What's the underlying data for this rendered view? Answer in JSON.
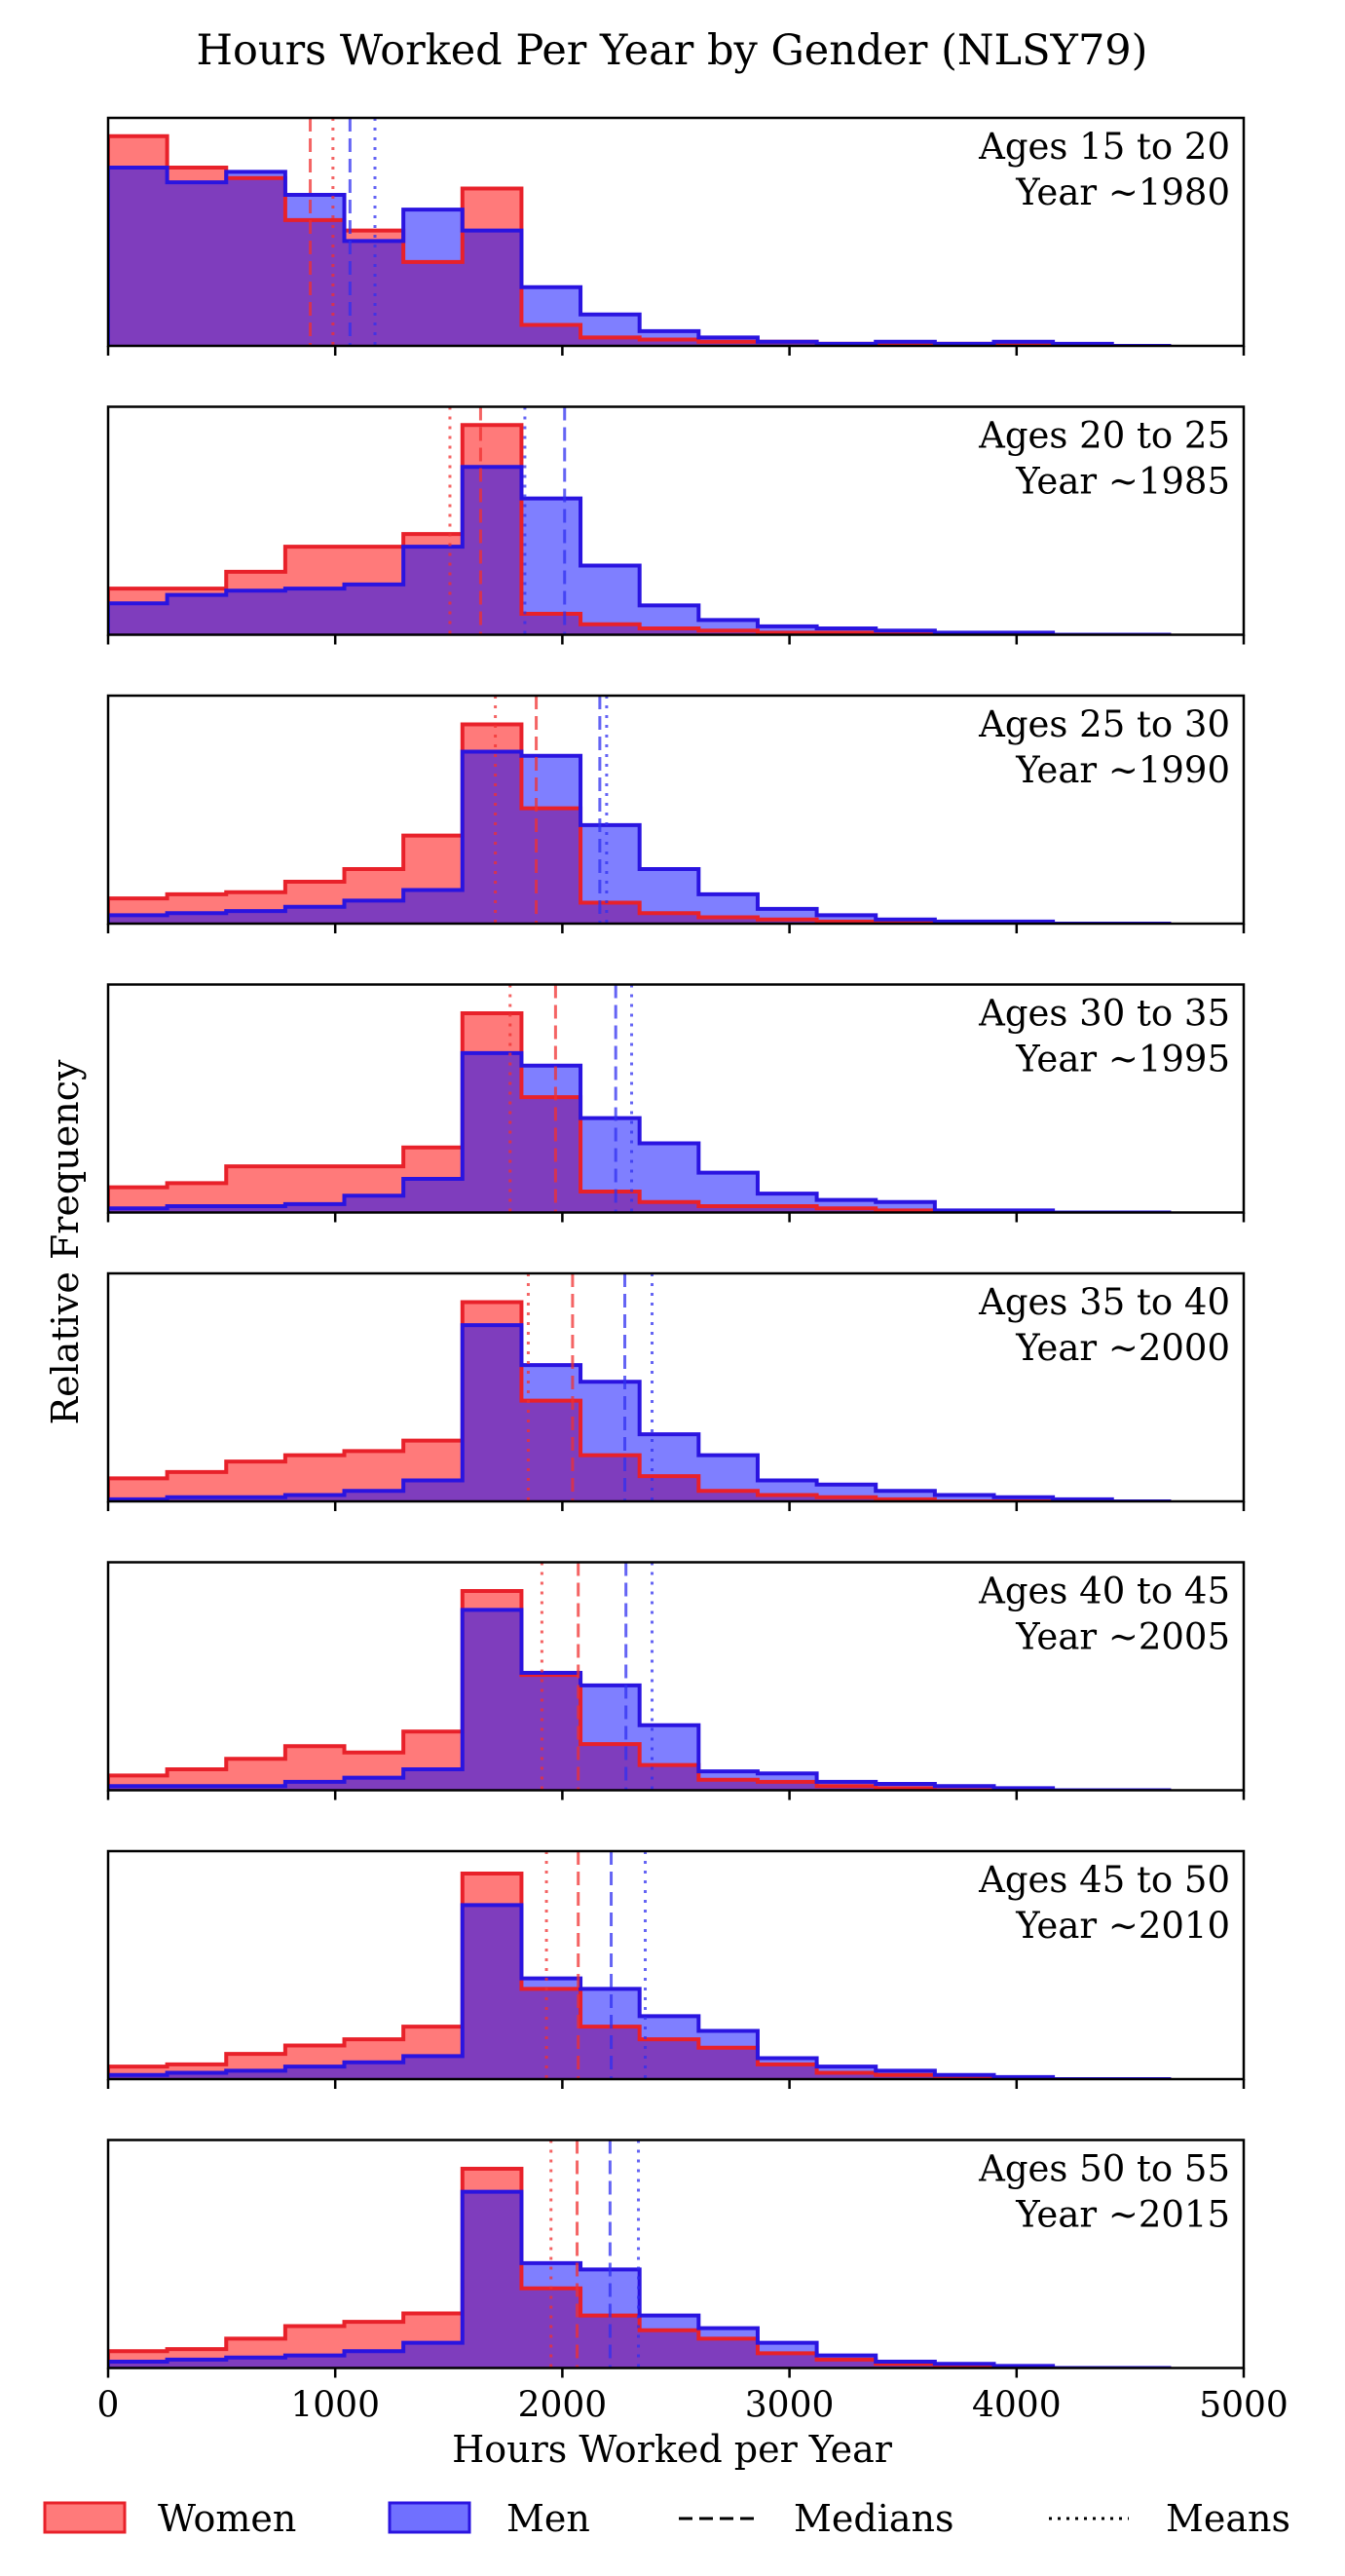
{
  "chart_data": {
    "type": "step-histogram",
    "title": "Hours Worked Per Year by Gender (NLSY79)",
    "xlabel": "Hours Worked per Year",
    "ylabel": "Relative Frequency",
    "xlim": [
      0,
      5000
    ],
    "xticks": [
      0,
      1000,
      2000,
      3000,
      4000,
      5000
    ],
    "bin_edges": [
      0,
      260,
      520,
      780,
      1040,
      1300,
      1560,
      1820,
      2080,
      2340,
      2600,
      2860,
      3120,
      3380,
      3640,
      3900,
      4160,
      4420,
      4680
    ],
    "grid": false,
    "legend_position": "bottom",
    "legend": [
      {
        "kind": "women",
        "label": "Women"
      },
      {
        "kind": "men",
        "label": "Men"
      },
      {
        "kind": "medians",
        "label": "Medians"
      },
      {
        "kind": "means",
        "label": "Means"
      }
    ],
    "colors": {
      "women_fill": "#ff7a7a",
      "women_edge": "#e8212a",
      "men_fill": "#7070ff",
      "men_edge": "#2a14e0",
      "overlap": "#7a40c0"
    },
    "panels": [
      {
        "ages": "Ages 15 to 20",
        "year": "Year ~1980",
        "women": [
          1.0,
          0.85,
          0.8,
          0.6,
          0.55,
          0.4,
          0.75,
          0.1,
          0.04,
          0.03,
          0.02,
          0.02,
          0.01,
          0.01,
          0.01,
          0.01,
          0.0,
          0.0
        ],
        "men": [
          0.85,
          0.78,
          0.83,
          0.72,
          0.5,
          0.65,
          0.55,
          0.28,
          0.15,
          0.07,
          0.04,
          0.02,
          0.01,
          0.02,
          0.01,
          0.02,
          0.01,
          0.0
        ],
        "women_median": 890,
        "women_mean": 990,
        "men_median": 1065,
        "men_mean": 1175
      },
      {
        "ages": "Ages 20 to 25",
        "year": "Year ~1985",
        "women": [
          0.22,
          0.22,
          0.3,
          0.42,
          0.42,
          0.48,
          1.0,
          0.1,
          0.05,
          0.03,
          0.02,
          0.01,
          0.01,
          0.01,
          0.0,
          0.0,
          0.0,
          0.0
        ],
        "men": [
          0.15,
          0.19,
          0.21,
          0.22,
          0.24,
          0.42,
          0.8,
          0.65,
          0.33,
          0.14,
          0.07,
          0.04,
          0.03,
          0.02,
          0.01,
          0.01,
          0.0,
          0.0
        ],
        "women_median": 1640,
        "women_mean": 1505,
        "men_median": 2010,
        "men_mean": 1835
      },
      {
        "ages": "Ages 25 to 30",
        "year": "Year ~1990",
        "women": [
          0.12,
          0.14,
          0.15,
          0.2,
          0.26,
          0.42,
          0.95,
          0.55,
          0.1,
          0.05,
          0.03,
          0.02,
          0.01,
          0.01,
          0.0,
          0.0,
          0.0,
          0.0
        ],
        "men": [
          0.04,
          0.05,
          0.06,
          0.08,
          0.11,
          0.16,
          0.82,
          0.8,
          0.47,
          0.26,
          0.14,
          0.07,
          0.04,
          0.02,
          0.01,
          0.01,
          0.0,
          0.0
        ],
        "women_median": 1885,
        "women_mean": 1705,
        "men_median": 2165,
        "men_mean": 2195
      },
      {
        "ages": "Ages 30 to 35",
        "year": "Year ~1995",
        "women": [
          0.12,
          0.14,
          0.22,
          0.22,
          0.22,
          0.31,
          0.95,
          0.55,
          0.1,
          0.05,
          0.03,
          0.03,
          0.02,
          0.01,
          0.0,
          0.0,
          0.0,
          0.0
        ],
        "men": [
          0.02,
          0.03,
          0.03,
          0.04,
          0.08,
          0.16,
          0.76,
          0.7,
          0.45,
          0.33,
          0.19,
          0.09,
          0.06,
          0.05,
          0.01,
          0.01,
          0.0,
          0.0
        ],
        "women_median": 1970,
        "women_mean": 1770,
        "men_median": 2235,
        "men_mean": 2305
      },
      {
        "ages": "Ages 35 to 40",
        "year": "Year ~2000",
        "women": [
          0.11,
          0.14,
          0.19,
          0.22,
          0.24,
          0.29,
          0.95,
          0.48,
          0.22,
          0.12,
          0.05,
          0.03,
          0.02,
          0.01,
          0.0,
          0.0,
          0.0,
          0.0
        ],
        "men": [
          0.01,
          0.02,
          0.02,
          0.03,
          0.05,
          0.1,
          0.84,
          0.65,
          0.57,
          0.32,
          0.22,
          0.1,
          0.08,
          0.05,
          0.03,
          0.02,
          0.01,
          0.0
        ],
        "women_median": 2045,
        "women_mean": 1850,
        "men_median": 2275,
        "men_mean": 2395
      },
      {
        "ages": "Ages 40 to 45",
        "year": "Year ~2005",
        "women": [
          0.07,
          0.1,
          0.15,
          0.21,
          0.18,
          0.28,
          0.95,
          0.55,
          0.22,
          0.12,
          0.05,
          0.04,
          0.02,
          0.01,
          0.0,
          0.0,
          0.0,
          0.0
        ],
        "men": [
          0.02,
          0.02,
          0.02,
          0.04,
          0.06,
          0.1,
          0.86,
          0.56,
          0.5,
          0.31,
          0.09,
          0.08,
          0.04,
          0.03,
          0.02,
          0.01,
          0.0,
          0.0
        ],
        "women_median": 2070,
        "women_mean": 1910,
        "men_median": 2280,
        "men_mean": 2395
      },
      {
        "ages": "Ages 45 to 50",
        "year": "Year ~2010",
        "women": [
          0.06,
          0.07,
          0.12,
          0.16,
          0.19,
          0.25,
          0.98,
          0.43,
          0.25,
          0.19,
          0.15,
          0.07,
          0.03,
          0.02,
          0.01,
          0.0,
          0.0,
          0.0
        ],
        "men": [
          0.02,
          0.03,
          0.04,
          0.06,
          0.08,
          0.11,
          0.83,
          0.48,
          0.43,
          0.3,
          0.23,
          0.1,
          0.06,
          0.04,
          0.02,
          0.01,
          0.0,
          0.0
        ],
        "women_median": 2070,
        "women_mean": 1930,
        "men_median": 2215,
        "men_mean": 2365
      },
      {
        "ages": "Ages 50 to 55",
        "year": "Year ~2015",
        "women": [
          0.08,
          0.09,
          0.14,
          0.2,
          0.22,
          0.26,
          0.95,
          0.38,
          0.25,
          0.18,
          0.14,
          0.07,
          0.04,
          0.02,
          0.01,
          0.0,
          0.0,
          0.0
        ],
        "men": [
          0.03,
          0.04,
          0.05,
          0.06,
          0.08,
          0.12,
          0.84,
          0.5,
          0.47,
          0.25,
          0.19,
          0.12,
          0.06,
          0.03,
          0.02,
          0.01,
          0.0,
          0.0
        ],
        "women_median": 2065,
        "women_mean": 1950,
        "men_median": 2210,
        "men_mean": 2335
      }
    ]
  }
}
